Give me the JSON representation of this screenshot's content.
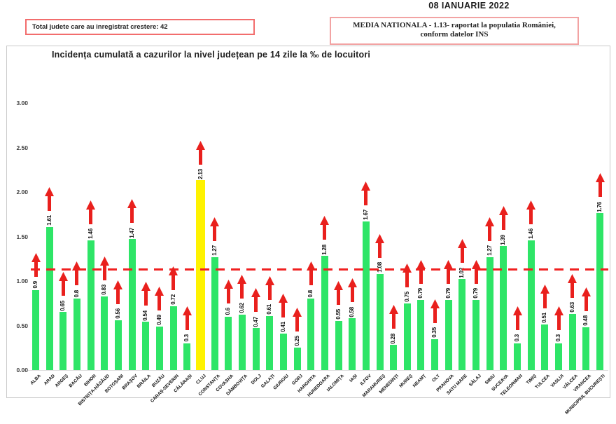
{
  "header": {
    "date": "08 IANUARIE 2022",
    "growth_box_label": "Total judete care au inregistrat crestere: 42",
    "national_average_line1": "MEDIA NATIONALA - 1.13- raportat la populatia României,",
    "national_average_line2": "conform datelor INS"
  },
  "chart_data": {
    "type": "bar",
    "title": "Incidența cumulată a cazurilor la nivel județean pe 14 zile la ‰ de locuitori",
    "categories": [
      "ALBA",
      "ARAD",
      "ARGEȘ",
      "BACĂU",
      "BIHOR",
      "BISTRIȚA-NĂSĂUD",
      "BOTOȘANI",
      "BRAȘOV",
      "BRĂILA",
      "BUZĂU",
      "CARAȘ-SEVERIN",
      "CĂLĂRAȘI",
      "CLUJ",
      "CONSTANȚA",
      "COVASNA",
      "DÂMBOVIȚA",
      "DOLJ",
      "GALAȚI",
      "GIURGIU",
      "GORJ",
      "HARGHITA",
      "HUNEDOARA",
      "IALOMIȚA",
      "IAȘI",
      "ILFOV",
      "MARAMUREȘ",
      "MEHEDINȚI",
      "MUREȘ",
      "NEAMȚ",
      "OLT",
      "PRAHOVA",
      "SATU MARE",
      "SĂLAJ",
      "SIBIU",
      "SUCEAVA",
      "TELEORMAN",
      "TIMIȘ",
      "TULCEA",
      "VASLUI",
      "VÂLCEA",
      "VRANCEA",
      "MUNICIPIUL BUCUREȘTI"
    ],
    "values": [
      0.9,
      1.61,
      0.65,
      0.8,
      1.46,
      0.83,
      0.56,
      1.47,
      0.54,
      0.49,
      0.72,
      0.3,
      2.13,
      1.27,
      0.6,
      0.62,
      0.47,
      0.61,
      0.41,
      0.25,
      0.8,
      1.28,
      0.55,
      0.58,
      1.67,
      1.08,
      0.28,
      0.75,
      0.79,
      0.35,
      0.79,
      1.02,
      0.79,
      1.27,
      1.39,
      0.3,
      1.46,
      0.51,
      0.3,
      0.63,
      0.48,
      1.76
    ],
    "highlight": {
      "category": "CLUJ",
      "index": 12,
      "color": "#fef200"
    },
    "bar_color": "#2ee567",
    "arrow_color": "#e9201d",
    "arrow_icon_meaning": "increase-arrow on every county bar",
    "average_line": {
      "value": 1.13,
      "color": "#f02020",
      "style": "dashed"
    },
    "ylim": [
      0,
      3.2
    ],
    "y_ticks": [
      0,
      0.5,
      1,
      1.5,
      2,
      2.5,
      3
    ],
    "y_tick_labels": [
      "0.00",
      "0.50",
      "1.00",
      "1.50",
      "2.00",
      "2.50",
      "3.00"
    ],
    "grid": false,
    "legend": "none"
  }
}
